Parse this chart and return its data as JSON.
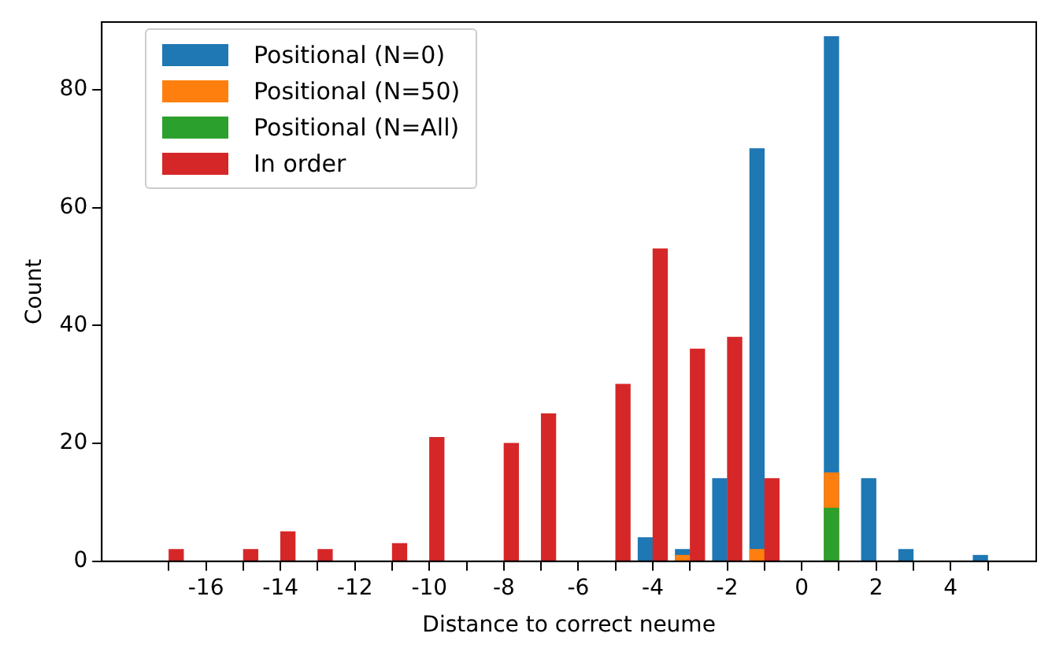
{
  "chart_data": {
    "type": "bar",
    "xlabel": "Distance to correct neume",
    "ylabel": "Count",
    "series": [
      {
        "name": "Positional (N=0)",
        "color": "#1f77b4",
        "x": [
          -4.2,
          -3.2,
          -2.2,
          -1.2,
          0.8,
          1.8,
          2.8,
          4.8
        ],
        "values": [
          4,
          2,
          14,
          70,
          89,
          14,
          2,
          1
        ]
      },
      {
        "name": "Positional (N=50)",
        "color": "#ff7f0e",
        "x": [
          -3.2,
          -1.2,
          0.8
        ],
        "values": [
          1,
          2,
          15
        ]
      },
      {
        "name": "Positional (N=All)",
        "color": "#2ca02c",
        "x": [
          0.8
        ],
        "values": [
          9
        ]
      },
      {
        "name": "In order",
        "color": "#d62728",
        "x": [
          -16.8,
          -14.8,
          -13.8,
          -12.8,
          -10.8,
          -9.8,
          -7.8,
          -6.8,
          -4.8,
          -3.8,
          -2.8,
          -1.8,
          -0.8
        ],
        "values": [
          2,
          2,
          5,
          2,
          3,
          21,
          20,
          25,
          30,
          53,
          36,
          38,
          14
        ]
      }
    ],
    "xlim": [
      -18.8,
      6.3
    ],
    "xticks": [
      {
        "value": -17,
        "label": null
      },
      -16,
      {
        "value": -15,
        "label": null
      },
      -14,
      {
        "value": -13,
        "label": null
      },
      -12,
      {
        "value": -11,
        "label": null
      },
      -10,
      {
        "value": -9,
        "label": null
      },
      -8,
      {
        "value": -7,
        "label": null
      },
      -6,
      {
        "value": -5,
        "label": null
      },
      -4,
      {
        "value": -3,
        "label": null
      },
      -2,
      {
        "value": -1,
        "label": null
      },
      0,
      {
        "value": 1,
        "label": null
      },
      2,
      {
        "value": 3,
        "label": null
      },
      4,
      {
        "value": 5,
        "label": null
      }
    ],
    "ylim": [
      0,
      91.5
    ],
    "yticks": [
      0,
      20,
      40,
      60,
      80
    ],
    "grid": false,
    "legend": "top left"
  }
}
